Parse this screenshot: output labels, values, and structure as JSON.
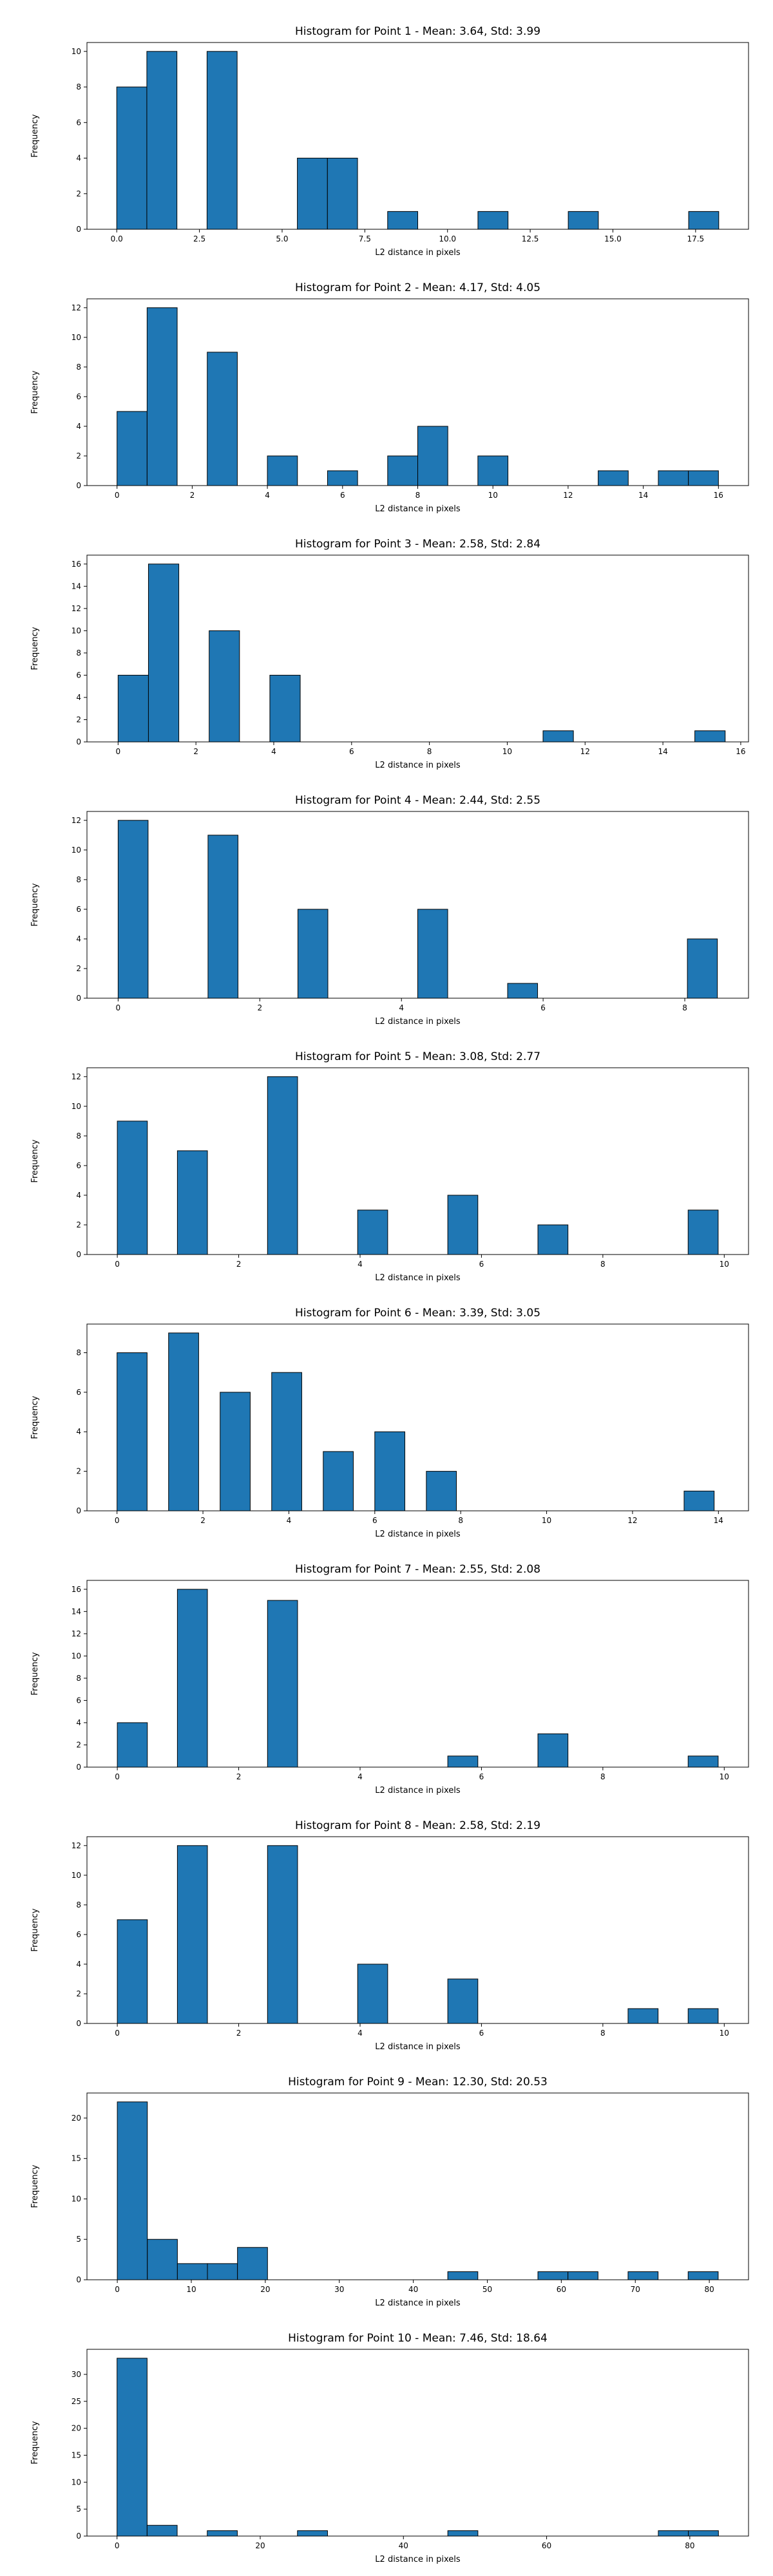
{
  "chart_data": [
    {
      "type": "bar",
      "title": "Histogram for Point 1 - Mean: 3.64, Std: 3.99",
      "xlabel": "L2 distance in pixels",
      "ylabel": "Frequency",
      "xlim": [
        -0.9,
        19.1
      ],
      "ylim": [
        0,
        10.5
      ],
      "xticks": [
        0,
        2.5,
        5,
        7.5,
        10,
        12.5,
        15,
        17.5
      ],
      "xtick_labels": [
        "0.0",
        "2.5",
        "5.0",
        "7.5",
        "10.0",
        "12.5",
        "15.0",
        "17.5"
      ],
      "yticks": [
        0,
        2,
        4,
        6,
        8,
        10
      ],
      "ytick_labels": [
        "0",
        "2",
        "4",
        "6",
        "8",
        "10"
      ],
      "bin_edges": [
        0,
        0.91,
        1.82,
        2.73,
        3.64,
        4.55,
        5.46,
        6.37,
        7.28,
        8.19,
        9.1,
        10.01,
        10.92,
        11.83,
        12.74,
        13.65,
        14.56,
        15.47,
        16.38,
        17.29,
        18.2
      ],
      "counts": [
        8,
        10,
        0,
        10,
        0,
        0,
        4,
        4,
        0,
        1,
        0,
        0,
        1,
        0,
        0,
        1,
        0,
        0,
        0,
        1
      ]
    },
    {
      "type": "bar",
      "title": "Histogram for Point 2 - Mean: 4.17, Std: 4.05",
      "xlabel": "L2 distance in pixels",
      "ylabel": "Frequency",
      "xlim": [
        -0.8,
        16.8
      ],
      "ylim": [
        0,
        12.6
      ],
      "xticks": [
        0,
        2,
        4,
        6,
        8,
        10,
        12,
        14,
        16
      ],
      "xtick_labels": [
        "0",
        "2",
        "4",
        "6",
        "8",
        "10",
        "12",
        "14",
        "16"
      ],
      "yticks": [
        0,
        2,
        4,
        6,
        8,
        10,
        12
      ],
      "ytick_labels": [
        "0",
        "2",
        "4",
        "6",
        "8",
        "10",
        "12"
      ],
      "bin_edges": [
        0,
        0.8,
        1.6,
        2.4,
        3.2,
        4.0,
        4.8,
        5.6,
        6.4,
        7.2,
        8.0,
        8.8,
        9.6,
        10.4,
        11.2,
        12.0,
        12.8,
        13.6,
        14.4,
        15.2,
        16.0
      ],
      "counts": [
        5,
        12,
        0,
        9,
        0,
        2,
        0,
        1,
        0,
        2,
        4,
        0,
        2,
        0,
        0,
        0,
        1,
        0,
        1,
        1
      ]
    },
    {
      "type": "bar",
      "title": "Histogram for Point 3 - Mean: 2.58, Std: 2.84",
      "xlabel": "L2 distance in pixels",
      "ylabel": "Frequency",
      "xlim": [
        -0.8,
        16.2
      ],
      "ylim": [
        0,
        16.8
      ],
      "xticks": [
        0,
        2,
        4,
        6,
        8,
        10,
        12,
        14,
        16
      ],
      "xtick_labels": [
        "0",
        "2",
        "4",
        "6",
        "8",
        "10",
        "12",
        "14",
        "16"
      ],
      "yticks": [
        0,
        2,
        4,
        6,
        8,
        10,
        12,
        14,
        16
      ],
      "ytick_labels": [
        "0",
        "2",
        "4",
        "6",
        "8",
        "10",
        "12",
        "14",
        "16"
      ],
      "bin_edges": [
        0,
        0.78,
        1.56,
        2.34,
        3.12,
        3.9,
        4.68,
        5.46,
        6.24,
        7.02,
        7.8,
        8.58,
        9.36,
        10.14,
        10.92,
        11.7,
        12.48,
        13.26,
        14.04,
        14.82,
        15.6
      ],
      "counts": [
        6,
        16,
        0,
        10,
        0,
        6,
        0,
        0,
        0,
        0,
        0,
        0,
        0,
        0,
        1,
        0,
        0,
        0,
        0,
        1
      ]
    },
    {
      "type": "bar",
      "title": "Histogram for Point 4 - Mean: 2.44, Std: 2.55",
      "xlabel": "L2 distance in pixels",
      "ylabel": "Frequency",
      "xlim": [
        -0.44,
        8.9
      ],
      "ylim": [
        0,
        12.6
      ],
      "xticks": [
        0,
        2,
        4,
        6,
        8
      ],
      "xtick_labels": [
        "0",
        "2",
        "4",
        "6",
        "8"
      ],
      "yticks": [
        0,
        2,
        4,
        6,
        8,
        10,
        12
      ],
      "ytick_labels": [
        "0",
        "2",
        "4",
        "6",
        "8",
        "10",
        "12"
      ],
      "bin_edges": [
        0,
        0.423,
        0.846,
        1.269,
        1.692,
        2.115,
        2.538,
        2.961,
        3.384,
        3.807,
        4.23,
        4.653,
        5.076,
        5.499,
        5.922,
        6.345,
        6.768,
        7.191,
        7.614,
        8.037,
        8.46
      ],
      "counts": [
        12,
        0,
        0,
        11,
        0,
        0,
        6,
        0,
        0,
        0,
        6,
        0,
        0,
        1,
        0,
        0,
        0,
        0,
        0,
        4
      ]
    },
    {
      "type": "bar",
      "title": "Histogram for Point 5 - Mean: 3.08, Std: 2.77",
      "xlabel": "L2 distance in pixels",
      "ylabel": "Frequency",
      "xlim": [
        -0.5,
        10.4
      ],
      "ylim": [
        0,
        12.6
      ],
      "xticks": [
        0,
        2,
        4,
        6,
        8,
        10
      ],
      "xtick_labels": [
        "0",
        "2",
        "4",
        "6",
        "8",
        "10"
      ],
      "yticks": [
        0,
        2,
        4,
        6,
        8,
        10,
        12
      ],
      "ytick_labels": [
        "0",
        "2",
        "4",
        "6",
        "8",
        "10",
        "12"
      ],
      "bin_edges": [
        0,
        0.495,
        0.99,
        1.485,
        1.98,
        2.475,
        2.97,
        3.465,
        3.96,
        4.455,
        4.95,
        5.445,
        5.94,
        6.435,
        6.93,
        7.425,
        7.92,
        8.415,
        8.91,
        9.405,
        9.9
      ],
      "counts": [
        9,
        0,
        7,
        0,
        0,
        12,
        0,
        0,
        3,
        0,
        0,
        4,
        0,
        0,
        2,
        0,
        0,
        0,
        0,
        3
      ]
    },
    {
      "type": "bar",
      "title": "Histogram for Point 6 - Mean: 3.39, Std: 3.05",
      "xlabel": "L2 distance in pixels",
      "ylabel": "Frequency",
      "xlim": [
        -0.7,
        14.7
      ],
      "ylim": [
        0,
        9.45
      ],
      "xticks": [
        0,
        2,
        4,
        6,
        8,
        10,
        12,
        14
      ],
      "xtick_labels": [
        "0",
        "2",
        "4",
        "6",
        "8",
        "10",
        "12",
        "14"
      ],
      "yticks": [
        0,
        2,
        4,
        6,
        8
      ],
      "ytick_labels": [
        "0",
        "2",
        "4",
        "6",
        "8"
      ],
      "bin_edges": [
        0,
        1.2,
        2.4,
        3.6,
        4.8,
        6.0,
        7.2,
        8.4,
        9.6,
        10.8,
        12.0,
        13.2,
        14.4
      ],
      "counts": [
        8,
        9,
        6,
        7,
        3,
        4,
        2,
        0,
        0,
        0,
        0,
        1
      ],
      "bar_width": 0.7
    },
    {
      "type": "bar",
      "title": "Histogram for Point 7 - Mean: 2.55, Std: 2.08",
      "xlabel": "L2 distance in pixels",
      "ylabel": "Frequency",
      "xlim": [
        -0.5,
        10.4
      ],
      "ylim": [
        0,
        16.8
      ],
      "xticks": [
        0,
        2,
        4,
        6,
        8,
        10
      ],
      "xtick_labels": [
        "0",
        "2",
        "4",
        "6",
        "8",
        "10"
      ],
      "yticks": [
        0,
        2,
        4,
        6,
        8,
        10,
        12,
        14,
        16
      ],
      "ytick_labels": [
        "0",
        "2",
        "4",
        "6",
        "8",
        "10",
        "12",
        "14",
        "16"
      ],
      "bin_edges": [
        0,
        0.495,
        0.99,
        1.485,
        1.98,
        2.475,
        2.97,
        3.465,
        3.96,
        4.455,
        4.95,
        5.445,
        5.94,
        6.435,
        6.93,
        7.425,
        7.92,
        8.415,
        8.91,
        9.405,
        9.9
      ],
      "counts": [
        4,
        0,
        16,
        0,
        0,
        15,
        0,
        0,
        0,
        0,
        0,
        1,
        0,
        0,
        3,
        0,
        0,
        0,
        0,
        1
      ]
    },
    {
      "type": "bar",
      "title": "Histogram for Point 8 - Mean: 2.58, Std: 2.19",
      "xlabel": "L2 distance in pixels",
      "ylabel": "Frequency",
      "xlim": [
        -0.5,
        10.4
      ],
      "ylim": [
        0,
        12.6
      ],
      "xticks": [
        0,
        2,
        4,
        6,
        8,
        10
      ],
      "xtick_labels": [
        "0",
        "2",
        "4",
        "6",
        "8",
        "10"
      ],
      "yticks": [
        0,
        2,
        4,
        6,
        8,
        10,
        12
      ],
      "ytick_labels": [
        "0",
        "2",
        "4",
        "6",
        "8",
        "10",
        "12"
      ],
      "bin_edges": [
        0,
        0.495,
        0.99,
        1.485,
        1.98,
        2.475,
        2.97,
        3.465,
        3.96,
        4.455,
        4.95,
        5.445,
        5.94,
        6.435,
        6.93,
        7.425,
        7.92,
        8.415,
        8.91,
        9.405,
        9.9
      ],
      "counts": [
        7,
        0,
        12,
        0,
        0,
        12,
        0,
        0,
        4,
        0,
        0,
        3,
        0,
        0,
        0,
        0,
        0,
        1,
        0,
        1
      ]
    },
    {
      "type": "bar",
      "title": "Histogram for Point 9 - Mean: 12.30, Std: 20.53",
      "xlabel": "L2 distance in pixels",
      "ylabel": "Frequency",
      "xlim": [
        -4.1,
        85.3
      ],
      "ylim": [
        0,
        23.1
      ],
      "xticks": [
        0,
        10,
        20,
        30,
        40,
        50,
        60,
        70,
        80
      ],
      "xtick_labels": [
        "0",
        "10",
        "20",
        "30",
        "40",
        "50",
        "60",
        "70",
        "80"
      ],
      "yticks": [
        0,
        5,
        10,
        15,
        20
      ],
      "ytick_labels": [
        "0",
        "5",
        "10",
        "15",
        "20"
      ],
      "bin_edges": [
        0,
        4.06,
        8.12,
        12.18,
        16.24,
        20.3,
        24.36,
        28.42,
        32.48,
        36.54,
        40.6,
        44.66,
        48.72,
        52.78,
        56.84,
        60.9,
        64.96,
        69.02,
        73.08,
        77.14,
        81.2
      ],
      "counts": [
        22,
        5,
        2,
        2,
        4,
        0,
        0,
        0,
        0,
        0,
        0,
        1,
        0,
        0,
        1,
        1,
        0,
        1,
        0,
        1
      ]
    },
    {
      "type": "bar",
      "title": "Histogram for Point 10 - Mean: 7.46, Std: 18.64",
      "xlabel": "L2 distance in pixels",
      "ylabel": "Frequency",
      "xlim": [
        -4.2,
        88.2
      ],
      "ylim": [
        0,
        34.65
      ],
      "xticks": [
        0,
        20,
        40,
        60,
        80
      ],
      "xtick_labels": [
        "0",
        "20",
        "40",
        "60",
        "80"
      ],
      "yticks": [
        0,
        5,
        10,
        15,
        20,
        25,
        30
      ],
      "ytick_labels": [
        "0",
        "5",
        "10",
        "15",
        "20",
        "25",
        "30"
      ],
      "bin_edges": [
        0,
        4.2,
        8.4,
        12.6,
        16.8,
        21.0,
        25.2,
        29.4,
        33.6,
        37.8,
        42.0,
        46.2,
        50.4,
        54.6,
        58.8,
        63.0,
        67.2,
        71.4,
        75.6,
        79.8,
        84.0
      ],
      "counts": [
        33,
        2,
        0,
        1,
        0,
        0,
        1,
        0,
        0,
        0,
        0,
        1,
        0,
        0,
        0,
        0,
        0,
        0,
        1,
        1
      ]
    }
  ]
}
